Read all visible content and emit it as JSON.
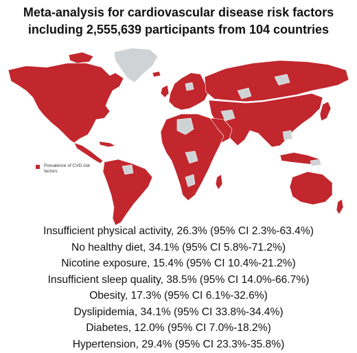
{
  "title": {
    "line1": "Meta-analysis for cardiovascular disease risk factors",
    "line2": "including 2,555,639  participants from 104 countries"
  },
  "map": {
    "data_color": "#c1272d",
    "nodata_color": "#cfd3d6",
    "legend": {
      "label": "Prevalence of CVD risk factors"
    }
  },
  "stats": [
    {
      "text": "Insufficient physical activity, 26.3% (95% CI 2.3%-63.4%)"
    },
    {
      "text": "No healthy diet, 34.1% (95% CI 5.8%-71.2%)"
    },
    {
      "text": "Nicotine exposure, 15.4% (95% CI 10.4%-21.2%)"
    },
    {
      "text": "Insufficient sleep quality, 38.5% (95% CI 14.0%-66.7%)"
    },
    {
      "text": "Obesity, 17.3% (95% CI 6.1%-32.6%)"
    },
    {
      "text": "Dyslipidemia, 34.1% (95% CI 33.8%-34.4%)"
    },
    {
      "text": "Diabetes, 12.0% (95% CI 7.0%-18.2%)"
    },
    {
      "text": "Hypertension, 29.4% (95% CI 23.3%-35.8%)"
    }
  ]
}
